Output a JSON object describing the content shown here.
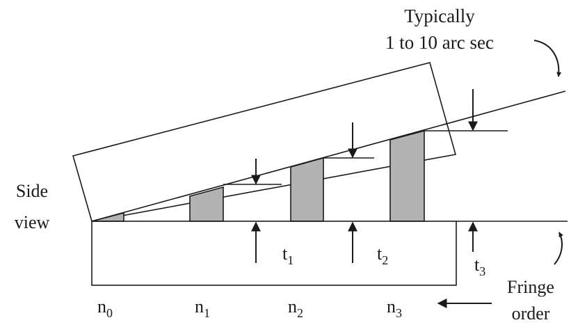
{
  "annotation": {
    "angle_line1": "Typically",
    "angle_line2": "1 to 10 arc sec"
  },
  "side_label": {
    "line1": "Side",
    "line2": "view"
  },
  "fringe_label": {
    "line1": "Fringe",
    "line2": "order"
  },
  "orders": [
    {
      "base": "n",
      "sub": "0"
    },
    {
      "base": "n",
      "sub": "1"
    },
    {
      "base": "n",
      "sub": "2"
    },
    {
      "base": "n",
      "sub": "3"
    }
  ],
  "steps": [
    {
      "base": "t",
      "sub": "1"
    },
    {
      "base": "t",
      "sub": "2"
    },
    {
      "base": "t",
      "sub": "3"
    }
  ]
}
